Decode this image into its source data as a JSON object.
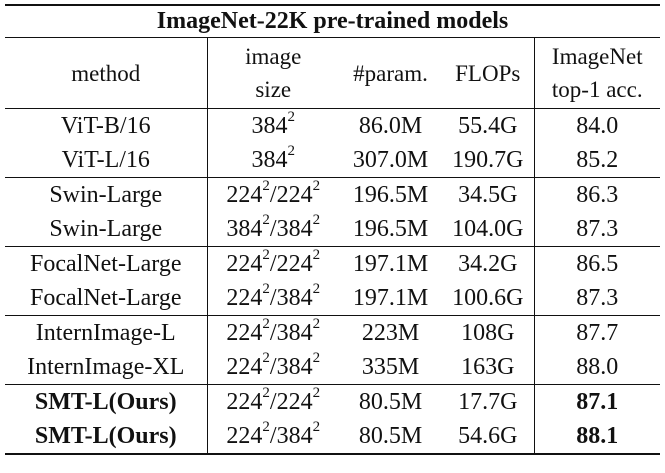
{
  "title": "ImageNet-22K pre-trained models",
  "headers": {
    "method": "method",
    "image_size_line1": "image",
    "image_size_line2": "size",
    "params": "#param.",
    "flops": "FLOPs",
    "acc_line1": "ImageNet",
    "acc_line2": "top-1 acc."
  },
  "rows": [
    {
      "method": "ViT-B/16",
      "size": [
        {
          "base": "384",
          "exp": "2"
        }
      ],
      "params": "86.0M",
      "flops": "55.4G",
      "acc": "84.0",
      "bold": false
    },
    {
      "method": "ViT-L/16",
      "size": [
        {
          "base": "384",
          "exp": "2"
        }
      ],
      "params": "307.0M",
      "flops": "190.7G",
      "acc": "85.2",
      "bold": false
    },
    {
      "method": "Swin-Large",
      "size": [
        {
          "base": "224",
          "exp": "2"
        },
        {
          "base": "224",
          "exp": "2"
        }
      ],
      "params": "196.5M",
      "flops": "34.5G",
      "acc": "86.3",
      "bold": false
    },
    {
      "method": "Swin-Large",
      "size": [
        {
          "base": "384",
          "exp": "2"
        },
        {
          "base": "384",
          "exp": "2"
        }
      ],
      "params": "196.5M",
      "flops": "104.0G",
      "acc": "87.3",
      "bold": false
    },
    {
      "method": "FocalNet-Large",
      "size": [
        {
          "base": "224",
          "exp": "2"
        },
        {
          "base": "224",
          "exp": "2"
        }
      ],
      "params": "197.1M",
      "flops": "34.2G",
      "acc": "86.5",
      "bold": false
    },
    {
      "method": "FocalNet-Large",
      "size": [
        {
          "base": "224",
          "exp": "2"
        },
        {
          "base": "384",
          "exp": "2"
        }
      ],
      "params": "197.1M",
      "flops": "100.6G",
      "acc": "87.3",
      "bold": false
    },
    {
      "method": "InternImage-L",
      "size": [
        {
          "base": "224",
          "exp": "2"
        },
        {
          "base": "384",
          "exp": "2"
        }
      ],
      "params": "223M",
      "flops": "108G",
      "acc": "87.7",
      "bold": false
    },
    {
      "method": "InternImage-XL",
      "size": [
        {
          "base": "224",
          "exp": "2"
        },
        {
          "base": "384",
          "exp": "2"
        }
      ],
      "params": "335M",
      "flops": "163G",
      "acc": "88.0",
      "bold": false
    },
    {
      "method": "SMT-L(Ours)",
      "size": [
        {
          "base": "224",
          "exp": "2"
        },
        {
          "base": "224",
          "exp": "2"
        }
      ],
      "params": "80.5M",
      "flops": "17.7G",
      "acc": "87.1",
      "bold": true
    },
    {
      "method": "SMT-L(Ours)",
      "size": [
        {
          "base": "224",
          "exp": "2"
        },
        {
          "base": "384",
          "exp": "2"
        }
      ],
      "params": "80.5M",
      "flops": "54.6G",
      "acc": "88.1",
      "bold": true
    }
  ],
  "group_separators_before": [
    2,
    4,
    6,
    8
  ]
}
